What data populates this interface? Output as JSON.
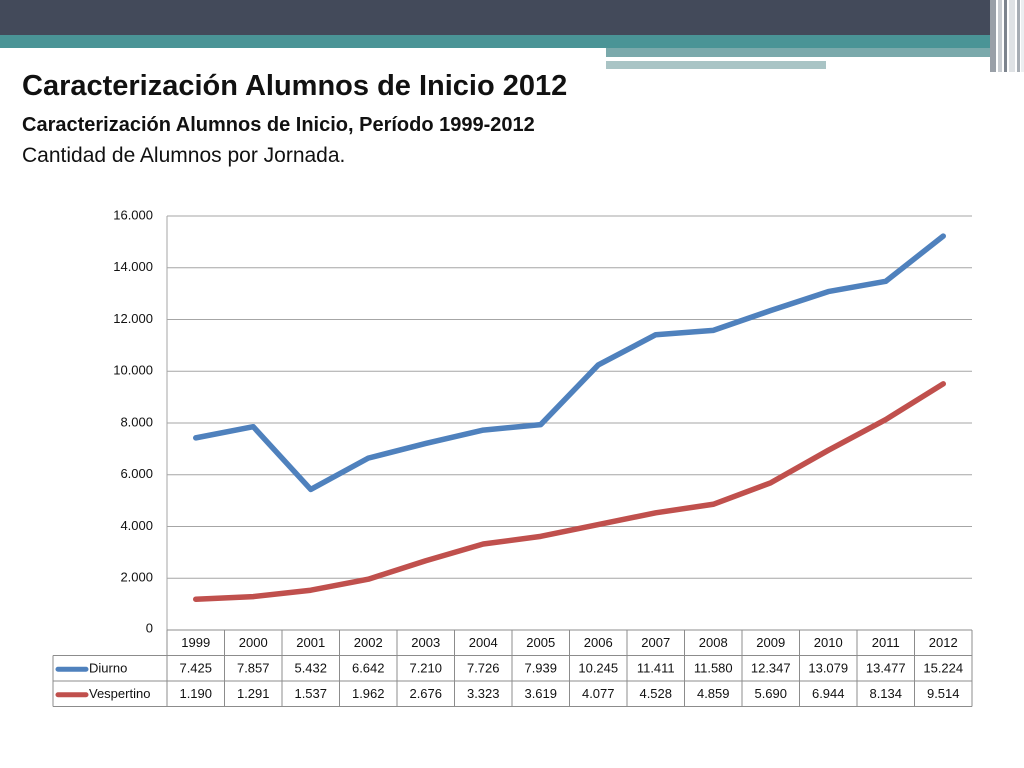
{
  "slide": {
    "title": "Caracterización Alumnos de Inicio 2012",
    "subtitle": "Caracterización Alumnos de Inicio, Período 1999-2012",
    "caption": "Cantidad de Alumnos por Jornada."
  },
  "colors": {
    "banner_dark": "#434a5a",
    "banner_teal": "#4a9496",
    "grid": "#a6a6a6"
  },
  "chart_data": {
    "type": "line",
    "title": "",
    "xlabel": "",
    "ylabel": "",
    "x": [
      "1999",
      "2000",
      "2001",
      "2002",
      "2003",
      "2004",
      "2005",
      "2006",
      "2007",
      "2008",
      "2009",
      "2010",
      "2011",
      "2012"
    ],
    "ylim": [
      0,
      16000
    ],
    "y_ticks": [
      0,
      2000,
      4000,
      6000,
      8000,
      10000,
      12000,
      14000,
      16000
    ],
    "y_tick_labels": [
      "0",
      "2.000",
      "4.000",
      "6.000",
      "8.000",
      "10.000",
      "12.000",
      "14.000",
      "16.000"
    ],
    "grid": true,
    "legend": "data-table-left",
    "series": [
      {
        "name": "Diurno",
        "color": "#4f81bd",
        "values": [
          7425,
          7857,
          5432,
          6642,
          7210,
          7726,
          7939,
          10245,
          11411,
          11580,
          12347,
          13079,
          13477,
          15224
        ],
        "labels": [
          "7.425",
          "7.857",
          "5.432",
          "6.642",
          "7.210",
          "7.726",
          "7.939",
          "10.245",
          "11.411",
          "11.580",
          "12.347",
          "13.079",
          "13.477",
          "15.224"
        ]
      },
      {
        "name": "Vespertino",
        "color": "#c0504d",
        "values": [
          1190,
          1291,
          1537,
          1962,
          2676,
          3323,
          3619,
          4077,
          4528,
          4859,
          5690,
          6944,
          8134,
          9514
        ],
        "labels": [
          "1.190",
          "1.291",
          "1.537",
          "1.962",
          "2.676",
          "3.323",
          "3.619",
          "4.077",
          "4.528",
          "4.859",
          "5.690",
          "6.944",
          "8.134",
          "9.514"
        ]
      }
    ]
  }
}
